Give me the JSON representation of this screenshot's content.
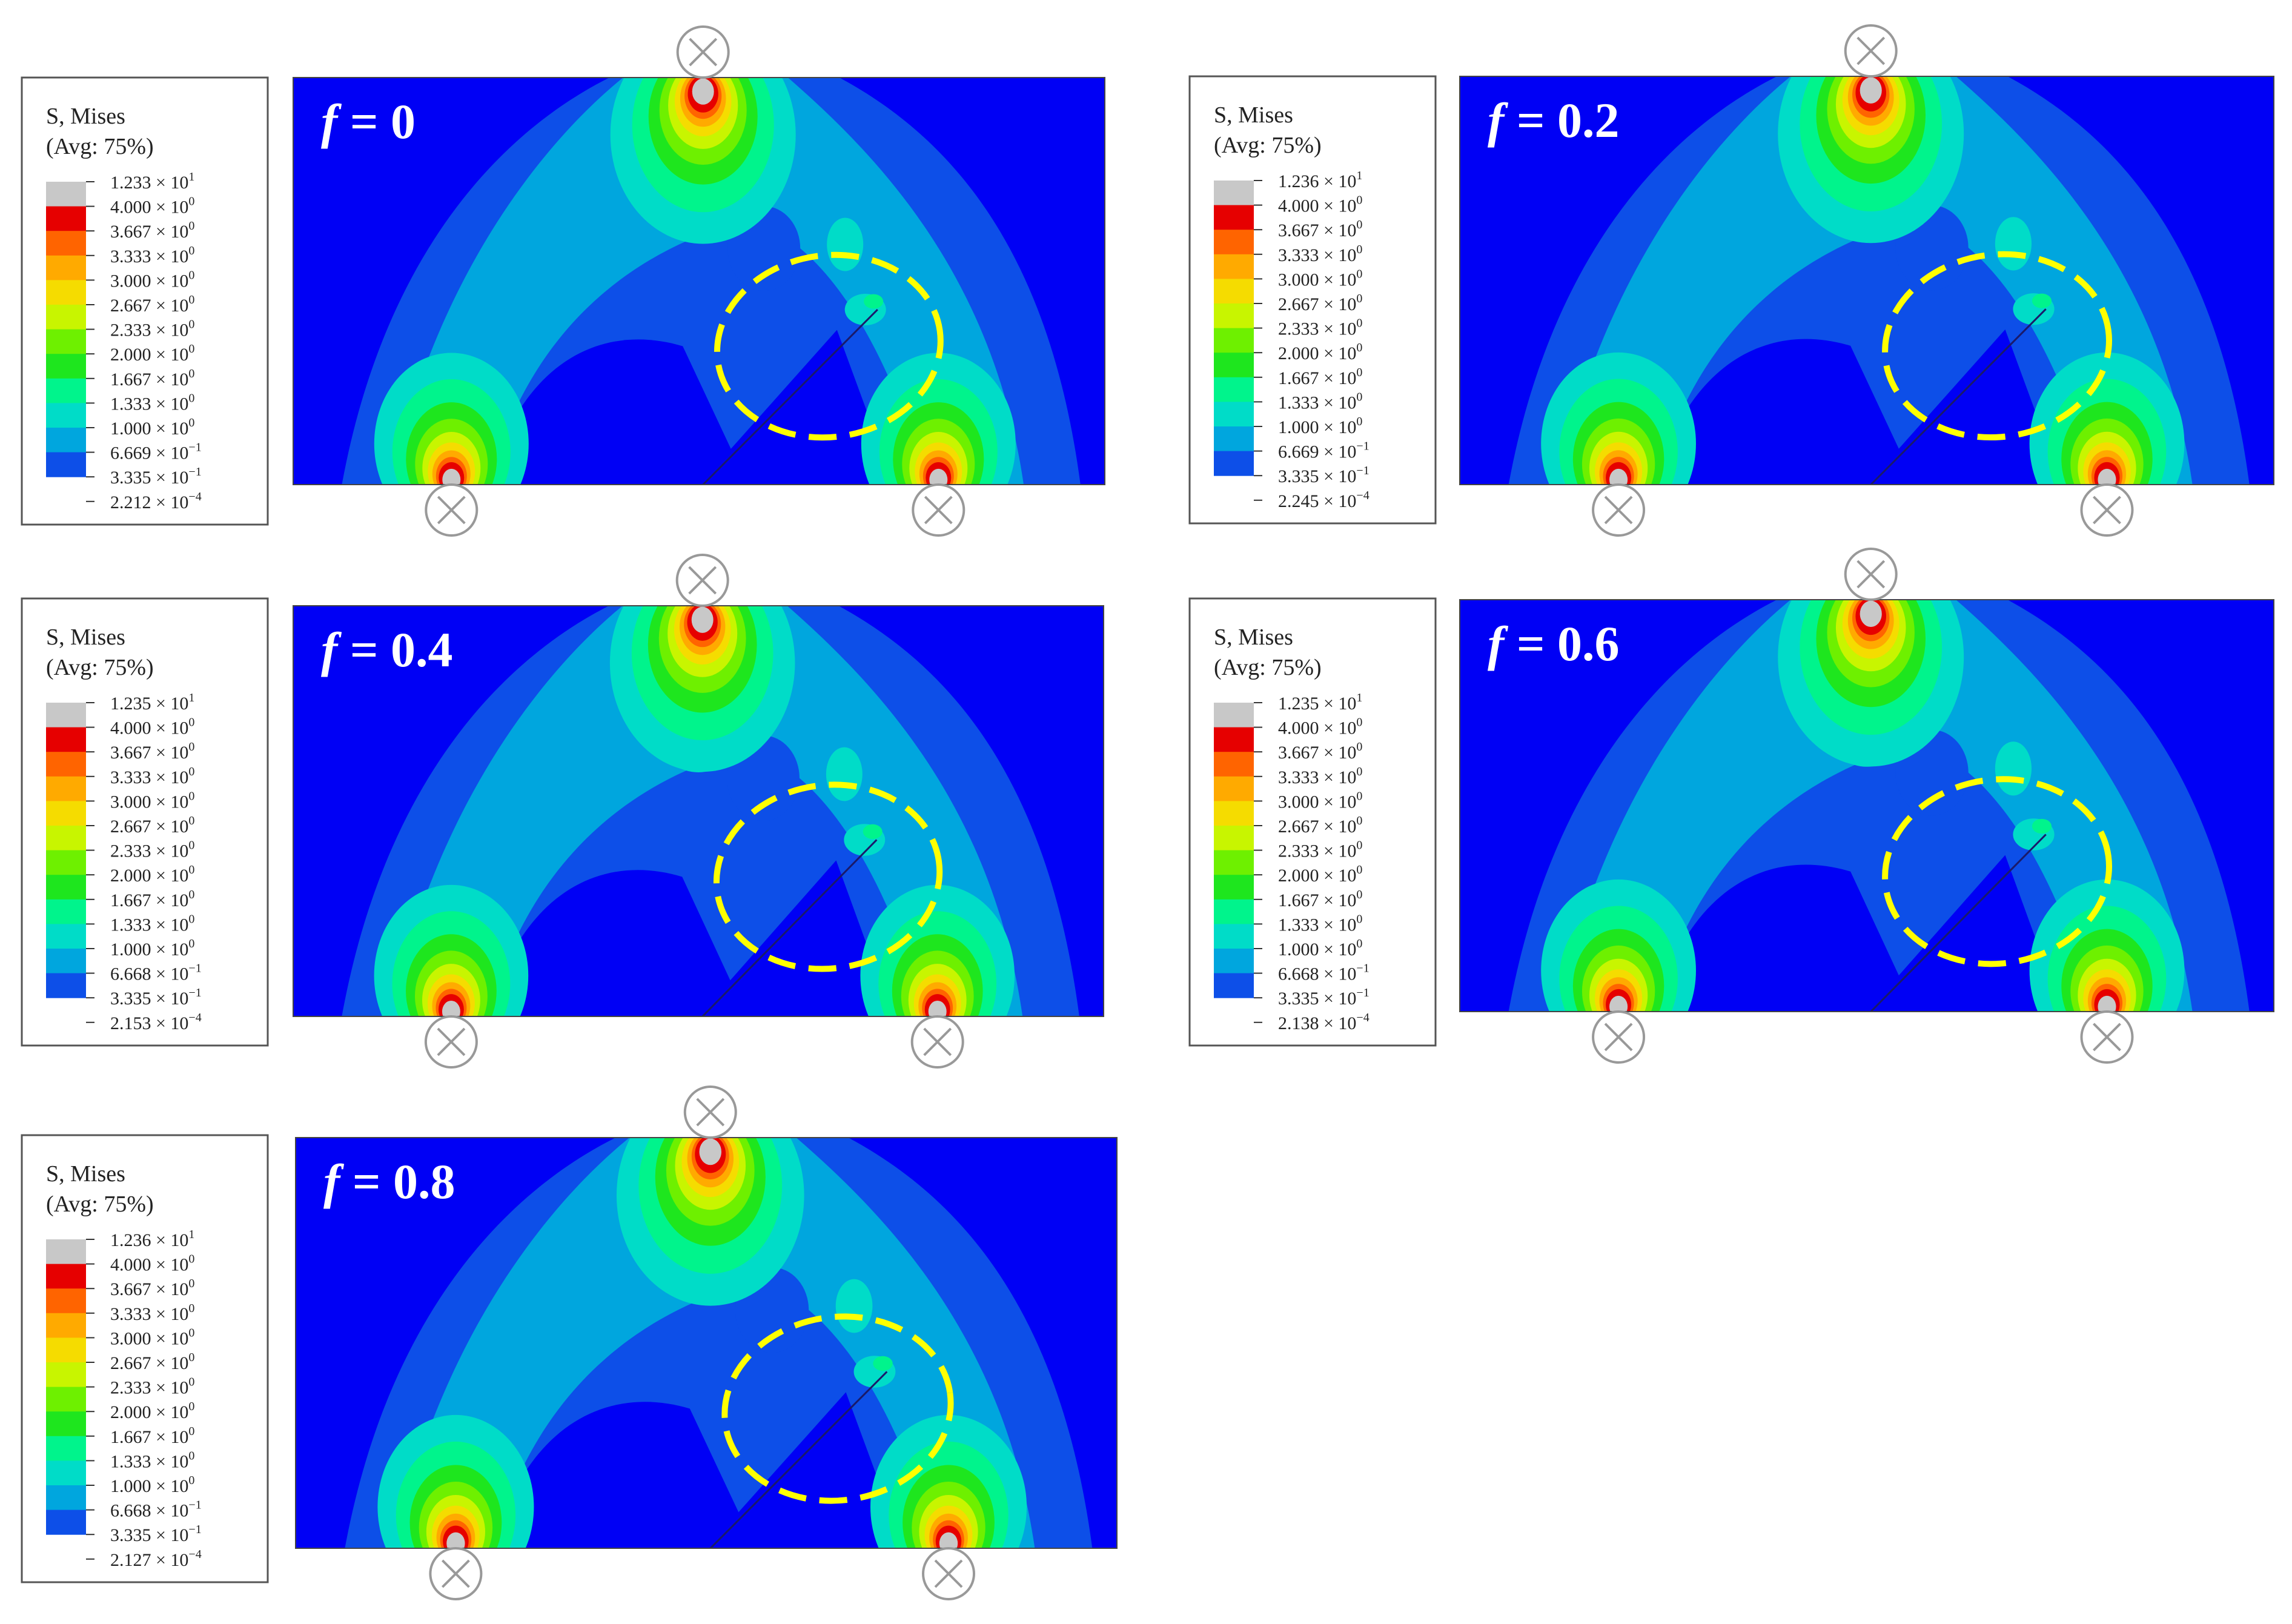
{
  "colors": {
    "bands": [
      "#0000f5",
      "#0d4fe8",
      "#00a6de",
      "#00dcc8",
      "#00f48c",
      "#1ee61e",
      "#6ef000",
      "#c8f500",
      "#f5dc00",
      "#ffaa00",
      "#ff6400",
      "#e60000",
      "#c8c8c8"
    ],
    "annotation": "#ffff00",
    "support": "#999999"
  },
  "legend_title_1": "S, Mises",
  "legend_title_2": "(Avg: 75%)",
  "common_ticks": [
    {
      "m": "4.000",
      "e": "0"
    },
    {
      "m": "3.667",
      "e": "0"
    },
    {
      "m": "3.333",
      "e": "0"
    },
    {
      "m": "3.000",
      "e": "0"
    },
    {
      "m": "2.667",
      "e": "0"
    },
    {
      "m": "2.333",
      "e": "0"
    },
    {
      "m": "2.000",
      "e": "0"
    },
    {
      "m": "1.667",
      "e": "0"
    },
    {
      "m": "1.333",
      "e": "0"
    },
    {
      "m": "1.000",
      "e": "0"
    }
  ],
  "panels": [
    {
      "label_f": "f",
      "label_eq": " = 0",
      "ticks_top": {
        "m": "1.233",
        "e": "1"
      },
      "ticks_bottom": [
        {
          "m": "6.669",
          "e": "−1"
        },
        {
          "m": "3.335",
          "e": "−1"
        },
        {
          "m": "2.212",
          "e": "−4"
        }
      ]
    },
    {
      "label_f": "f",
      "label_eq": " = 0.2",
      "ticks_top": {
        "m": "1.236",
        "e": "1"
      },
      "ticks_bottom": [
        {
          "m": "6.669",
          "e": "−1"
        },
        {
          "m": "3.335",
          "e": "−1"
        },
        {
          "m": "2.245",
          "e": "−4"
        }
      ]
    },
    {
      "label_f": "f",
      "label_eq": " = 0.4",
      "ticks_top": {
        "m": "1.235",
        "e": "1"
      },
      "ticks_bottom": [
        {
          "m": "6.668",
          "e": "−1"
        },
        {
          "m": "3.335",
          "e": "−1"
        },
        {
          "m": "2.153",
          "e": "−4"
        }
      ]
    },
    {
      "label_f": "f",
      "label_eq": " = 0.6",
      "ticks_top": {
        "m": "1.235",
        "e": "1"
      },
      "ticks_bottom": [
        {
          "m": "6.668",
          "e": "−1"
        },
        {
          "m": "3.335",
          "e": "−1"
        },
        {
          "m": "2.138",
          "e": "−4"
        }
      ]
    },
    {
      "label_f": "f",
      "label_eq": " = 0.8",
      "ticks_top": {
        "m": "1.236",
        "e": "1"
      },
      "ticks_bottom": [
        {
          "m": "6.668",
          "e": "−1"
        },
        {
          "m": "3.335",
          "e": "−1"
        },
        {
          "m": "2.127",
          "e": "−4"
        }
      ]
    }
  ]
}
